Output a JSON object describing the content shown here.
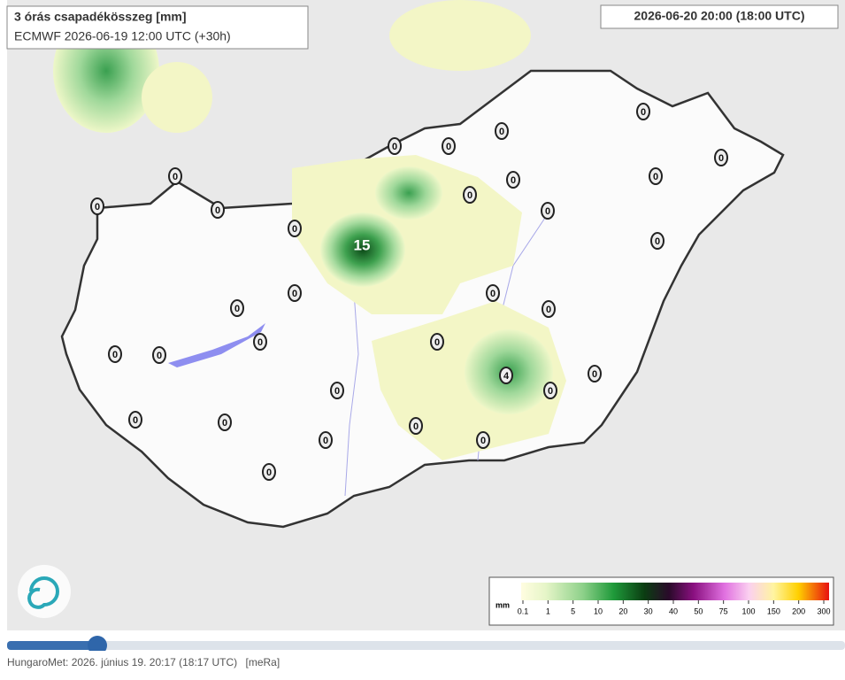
{
  "header": {
    "title": "3 órás csapadékösszeg [mm]",
    "subtitle": "ECMWF 2026-06-19 12:00 UTC (+30h)",
    "valid_time": "2026-06-20 20:00 (18:00 UTC)"
  },
  "stations": [
    0,
    0,
    0,
    0,
    0,
    0,
    0,
    0,
    0,
    0,
    0,
    0,
    0,
    0,
    15,
    0,
    0,
    0,
    0,
    0,
    0,
    0,
    0,
    4,
    0,
    0,
    0,
    0,
    0,
    0,
    0,
    0,
    0
  ],
  "legend": {
    "unit": "mm",
    "ticks": [
      0.1,
      1,
      5,
      10,
      20,
      30,
      40,
      50,
      75,
      100,
      150,
      200,
      300
    ]
  },
  "footer": {
    "source": "HungaroMet: 2026. június 19. 20:17 (18:17 UTC)",
    "tag": "[meRa]"
  }
}
